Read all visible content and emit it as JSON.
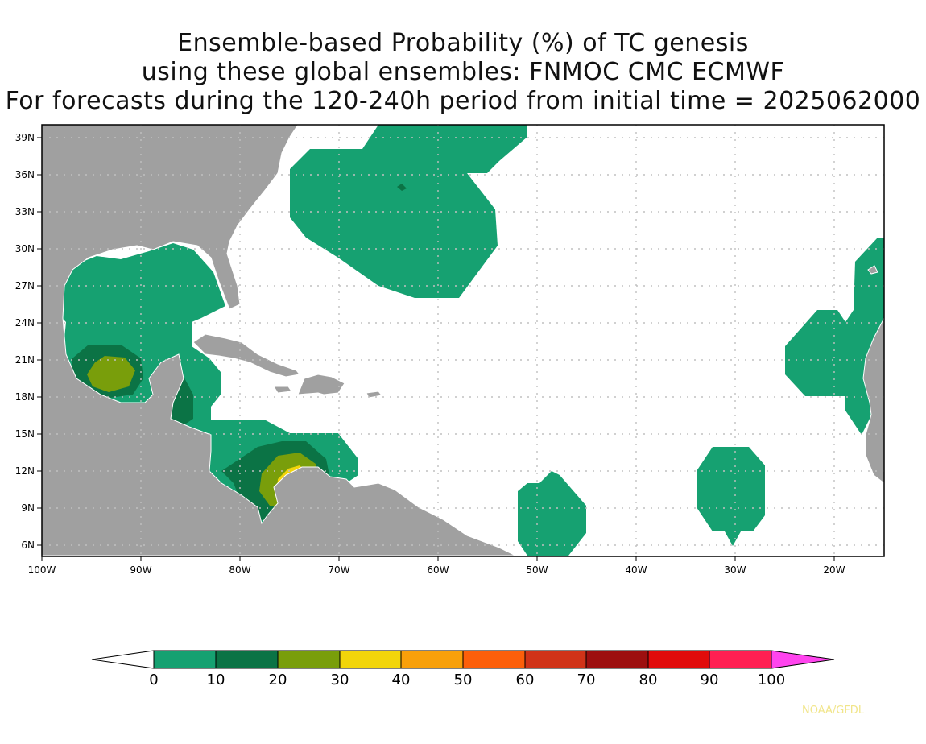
{
  "title": {
    "line1": "Ensemble-based Probability (%) of TC genesis",
    "line2": "using these global ensembles:   FNMOC CMC ECMWF",
    "line3": "For forecasts during the 120-240h period from initial time = 2025062000"
  },
  "map": {
    "lon_range": [
      -100,
      -15
    ],
    "lat_range": [
      5,
      40
    ],
    "lat_ticks": [
      "6N",
      "9N",
      "12N",
      "15N",
      "18N",
      "21N",
      "24N",
      "27N",
      "30N",
      "33N",
      "36N",
      "39N"
    ],
    "lon_ticks": [
      "100W",
      "90W",
      "80W",
      "70W",
      "60W",
      "50W",
      "40W",
      "30W",
      "20W"
    ],
    "land_color": "#a0a0a0",
    "ocean_color": "#ffffff",
    "gridlines": "dotted",
    "regions": [
      "western-atlantic-blob",
      "gulf-of-mexico-region",
      "caribbean-region",
      "eastern-pacific-region",
      "central-atlantic-region",
      "cape-verde-region"
    ]
  },
  "colorbar": {
    "labels": [
      "0",
      "10",
      "20",
      "30",
      "40",
      "50",
      "60",
      "70",
      "80",
      "90",
      "100"
    ],
    "colors": [
      "#16a171",
      "#0b7345",
      "#799e0b",
      "#f2d50a",
      "#f8a00a",
      "#fc5f0a",
      "#d03318",
      "#9d0f0f",
      "#e10b0b",
      "#ff1f52"
    ],
    "overflow_color": "#ff44ee",
    "underflow_color": "#ffffff"
  },
  "credit": "NOAA/GFDL"
}
